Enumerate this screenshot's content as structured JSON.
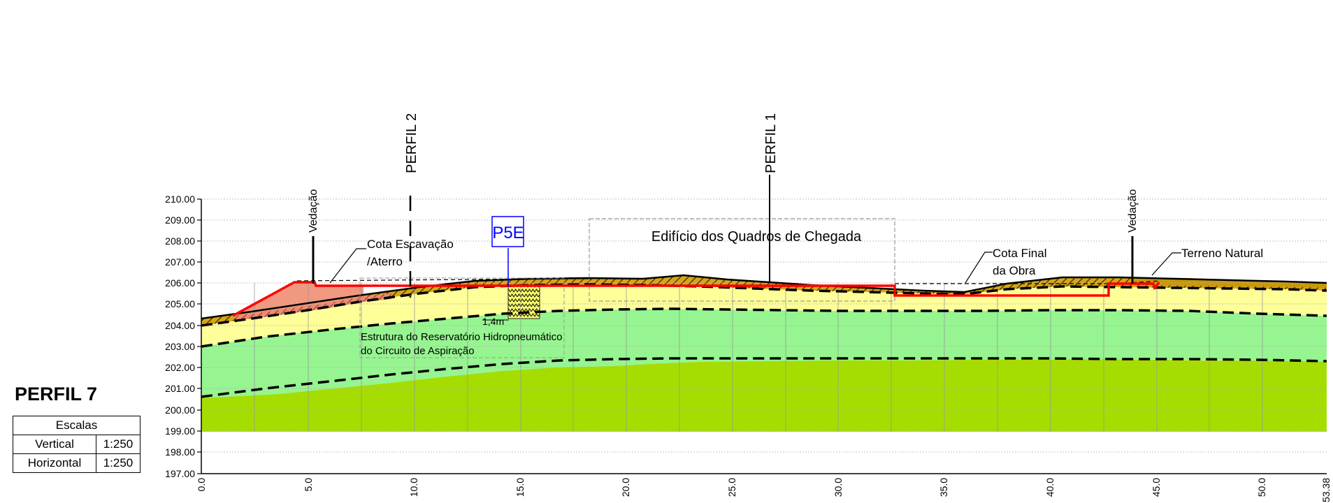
{
  "title": "PERFIL 7",
  "scales": {
    "header": "Escalas",
    "rows": [
      {
        "label": "Vertical",
        "value": "1:250"
      },
      {
        "label": "Horizontal",
        "value": "1:250"
      }
    ]
  },
  "axes": {
    "y_ticks": [
      "197.00",
      "198.00",
      "199.00",
      "200.00",
      "201.00",
      "202.00",
      "203.00",
      "204.00",
      "205.00",
      "206.00",
      "207.00",
      "208.00",
      "209.00",
      "210.00"
    ],
    "x_ticks": [
      "0.0",
      "5.0",
      "10.0",
      "15.0",
      "20.0",
      "25.0",
      "30.0",
      "35.0",
      "40.0",
      "45.0",
      "50.0",
      "53.38"
    ]
  },
  "labels": {
    "perfil2": "PERFIL 2",
    "perfil1": "PERFIL 1",
    "vedacao_left": "Vedação",
    "vedacao_right": "Vedação",
    "cota_escavacao_1": "Cota Escavação",
    "cota_escavacao_2": "/Aterro",
    "p5e": "P5E",
    "edificio": "Edifício dos Quadros de Chegada",
    "cota_final_1": "Cota Final",
    "cota_final_2": "da Obra",
    "terreno_natural": "Terreno Natural",
    "dim": "1,4m",
    "estrutura_1": "Estrutura do Reservatório Hidropneumático",
    "estrutura_2": "do Circuito de Aspiração"
  },
  "colors": {
    "base_layer": "#a6dd00",
    "mid_layer": "#96f590",
    "upper_layer": "#ffff99",
    "topsoil": "#c8980a",
    "fill_red": "#f0927a",
    "design_line": "#ff0000",
    "p5e_blue": "#0000ff"
  },
  "chart_data": {
    "type": "cross-section profile",
    "x_unit": "m",
    "y_unit": "elevation",
    "xlim": [
      0,
      53.38
    ],
    "ylim": [
      197,
      210
    ],
    "terrain_surface": [
      [
        0,
        204.4
      ],
      [
        5,
        205.0
      ],
      [
        10,
        205.5
      ],
      [
        15,
        205.9
      ],
      [
        20,
        206.1
      ],
      [
        22.7,
        206.35
      ],
      [
        26,
        206.05
      ],
      [
        30,
        205.8
      ],
      [
        35,
        205.6
      ],
      [
        38,
        206.0
      ],
      [
        41,
        206.3
      ],
      [
        45,
        206.3
      ],
      [
        53.38,
        206.0
      ]
    ],
    "design_line_excavation_fill": [
      [
        1.5,
        204.4
      ],
      [
        4.5,
        206.0
      ],
      [
        5.5,
        206.0
      ],
      [
        5.5,
        205.9
      ],
      [
        32.7,
        205.9
      ],
      [
        32.7,
        205.5
      ],
      [
        42.8,
        205.5
      ],
      [
        42.8,
        206.0
      ],
      [
        45.2,
        206.0
      ]
    ],
    "layer_boundaries": [
      {
        "name": "topsoil base",
        "points": [
          [
            0,
            204.0
          ],
          [
            10,
            205.0
          ],
          [
            20,
            205.7
          ],
          [
            25,
            205.8
          ],
          [
            35,
            205.5
          ],
          [
            40,
            205.8
          ],
          [
            50,
            205.85
          ],
          [
            53.38,
            205.6
          ]
        ]
      },
      {
        "name": "yellow/green boundary",
        "points": [
          [
            0,
            203.0
          ],
          [
            10,
            203.8
          ],
          [
            20,
            204.6
          ],
          [
            25,
            204.75
          ],
          [
            35,
            204.7
          ],
          [
            45,
            204.7
          ],
          [
            53.38,
            204.5
          ]
        ]
      },
      {
        "name": "green/base boundary",
        "points": [
          [
            0,
            200.6
          ],
          [
            10,
            201.4
          ],
          [
            20,
            202.1
          ],
          [
            25,
            202.25
          ],
          [
            35,
            202.35
          ],
          [
            42,
            202.4
          ],
          [
            53.38,
            202.3
          ]
        ]
      }
    ],
    "layer_bottom": 199.0
  }
}
